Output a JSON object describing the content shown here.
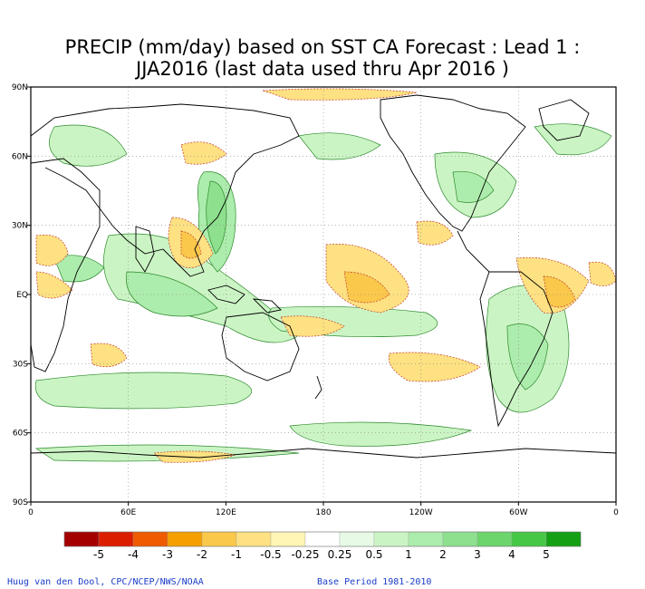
{
  "title_line1": "PRECIP (mm/day) based on SST CA Forecast : Lead 1 :",
  "title_line2": "JJA2016 (last data used thru Apr 2016 )",
  "lat_labels": [
    "90N",
    "60N",
    "30N",
    "EQ",
    "30S",
    "60S",
    "90S"
  ],
  "lon_labels": [
    "0",
    "60E",
    "120E",
    "180",
    "120W",
    "60W",
    "0"
  ],
  "legend": {
    "colors": [
      "#a50000",
      "#dc1e00",
      "#f05a00",
      "#f5a000",
      "#fac84b",
      "#fde182",
      "#fff5b4",
      "#ffffff",
      "#e6fae6",
      "#cbf4c4",
      "#acecac",
      "#8ee08e",
      "#6cd66c",
      "#46c846",
      "#14a014"
    ],
    "labels": [
      "-5",
      "-4",
      "-3",
      "-2",
      "-1",
      "-0.5",
      "-0.25",
      "0.25",
      "0.5",
      "1",
      "2",
      "3",
      "4",
      "5"
    ]
  },
  "credit_left": "Huug van den Dool, CPC/NCEP/NWS/NOAA",
  "credit_right": "Base Period 1981-2010"
}
